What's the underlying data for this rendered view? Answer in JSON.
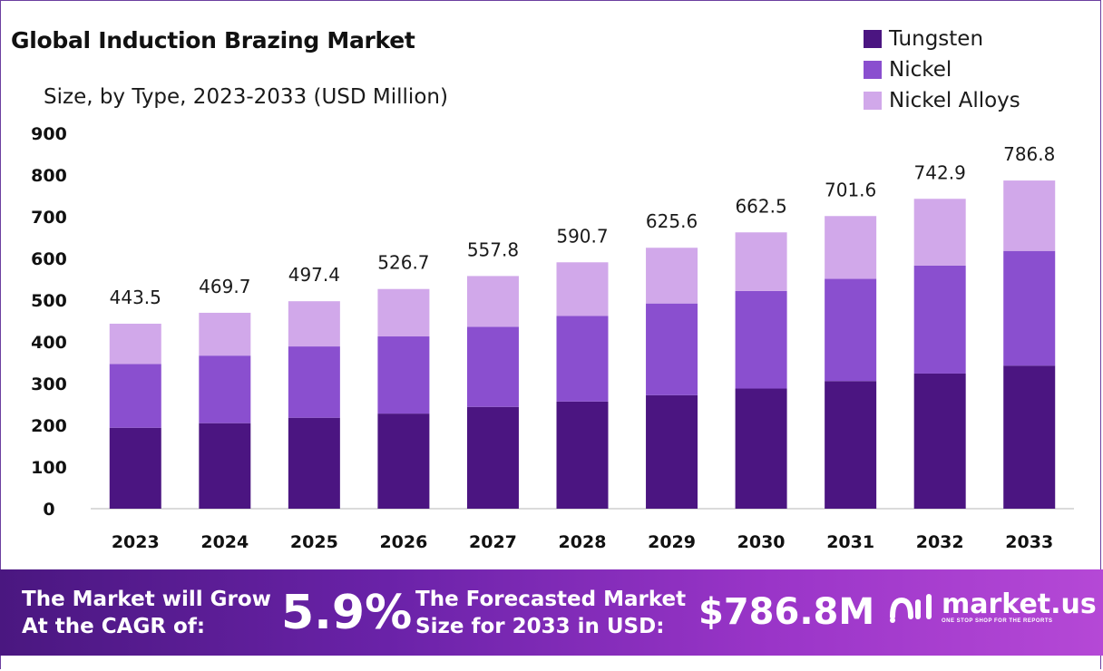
{
  "chart_data": {
    "type": "bar",
    "stacked": true,
    "title": "Global Induction Brazing Market",
    "subtitle": "Size, by Type, 2023-2033 (USD Million)",
    "categories": [
      "2023",
      "2024",
      "2025",
      "2026",
      "2027",
      "2028",
      "2029",
      "2030",
      "2031",
      "2032",
      "2033"
    ],
    "series": [
      {
        "name": "Tungsten",
        "color": "#4b1581",
        "values": [
          194,
          205,
          218,
          228,
          244,
          257,
          272,
          288,
          306,
          324,
          343
        ]
      },
      {
        "name": "Nickel",
        "color": "#8a4fcf",
        "values": [
          153,
          162,
          171,
          185,
          192,
          205,
          220,
          234,
          245,
          259,
          275
        ]
      },
      {
        "name": "Nickel Alloys",
        "color": "#d1a8ea",
        "values": [
          96.5,
          102.7,
          108.4,
          113.7,
          121.8,
          128.7,
          133.6,
          140.5,
          150.6,
          159.9,
          168.8
        ]
      }
    ],
    "totals": [
      "443.5",
      "469.7",
      "497.4",
      "526.7",
      "557.8",
      "590.7",
      "625.6",
      "662.5",
      "701.6",
      "742.9",
      "786.8"
    ],
    "yticks": [
      0,
      100,
      200,
      300,
      400,
      500,
      600,
      700,
      800,
      900
    ],
    "ylim": [
      0,
      900
    ],
    "xlabel": "",
    "ylabel": "",
    "legend_position": "top-right",
    "grid": false
  },
  "footer": {
    "cagr_label": "The Market will Grow At the CAGR of:",
    "cagr_value": "5.9%",
    "forecast_label": "The Forecasted Market Size for 2033 in USD:",
    "forecast_value": "$786.8M",
    "brand_name": "market.us",
    "brand_tagline": "ONE STOP SHOP FOR THE REPORTS"
  },
  "colors": {
    "tungsten": "#4b1581",
    "nickel": "#8a4fcf",
    "nickel_alloys": "#d1a8ea",
    "footer_start": "#4a1780",
    "footer_end": "#b548d6"
  }
}
